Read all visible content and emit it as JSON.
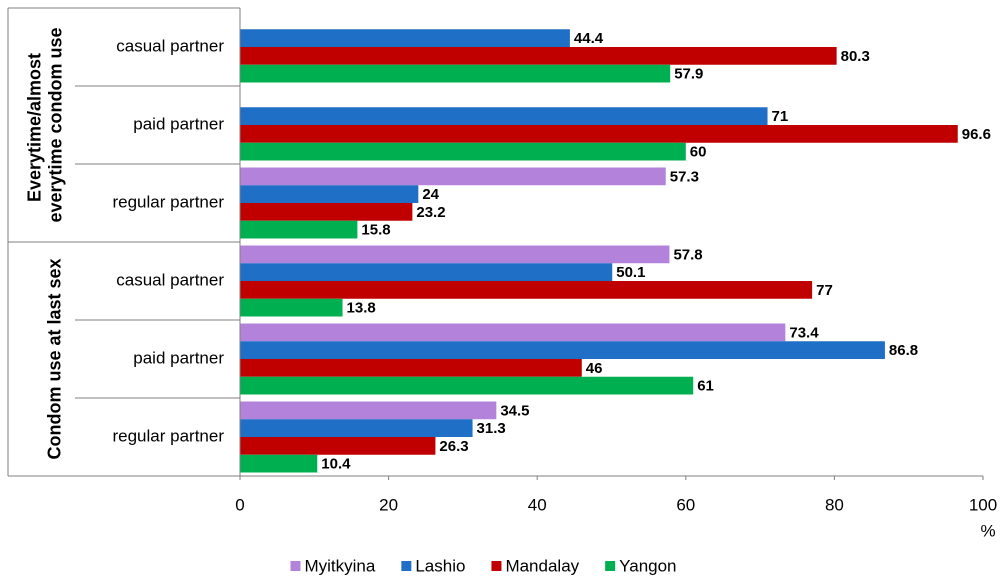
{
  "chart_data": {
    "type": "bar",
    "orientation": "horizontal",
    "category_groups": [
      "Everytime/almost everytime condom use",
      "Condom use at last sex"
    ],
    "categories": [
      "casual partner",
      "paid partner",
      "regular partner",
      "casual partner",
      "paid partner",
      "regular partner"
    ],
    "series": [
      {
        "name": "Myitkyina",
        "color": "#b383db",
        "values": [
          null,
          null,
          57.3,
          57.8,
          73.4,
          34.5
        ]
      },
      {
        "name": "Lashio",
        "color": "#1f6fc6",
        "values": [
          44.4,
          71,
          24,
          50.1,
          86.8,
          31.3
        ]
      },
      {
        "name": "Mandalay",
        "color": "#c00000",
        "values": [
          80.3,
          96.6,
          23.2,
          77,
          46,
          26.3
        ]
      },
      {
        "name": "Yangon",
        "color": "#00b050",
        "values": [
          57.9,
          60,
          15.8,
          13.8,
          61,
          10.4
        ]
      }
    ],
    "xlim": [
      0,
      100
    ],
    "xticks": [
      0,
      20,
      40,
      60,
      80,
      100
    ],
    "x_label": "%",
    "grid": false,
    "legend": "bottom"
  }
}
